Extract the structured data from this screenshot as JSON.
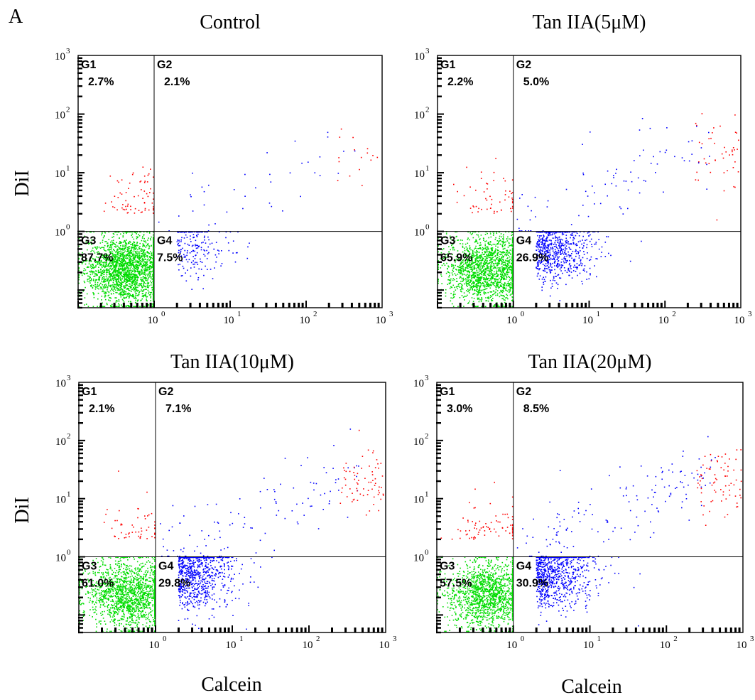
{
  "figure": {
    "panel_letter": "A",
    "y_axis_label": "DiI",
    "x_axis_label": "Calcein"
  },
  "chart_data": [
    {
      "type": "scatter",
      "title": "Control",
      "xlabel": "Calcein",
      "ylabel": "DiI",
      "xscale": "log",
      "yscale": "log",
      "xlim": [
        0.1,
        1000
      ],
      "ylim": [
        0.05,
        1000
      ],
      "x_ticks": [
        {
          "base": "10",
          "exp": "0"
        },
        {
          "base": "10",
          "exp": "1"
        },
        {
          "base": "10",
          "exp": "2"
        },
        {
          "base": "10",
          "exp": "3"
        }
      ],
      "y_ticks": [
        {
          "base": "10",
          "exp": "0"
        },
        {
          "base": "10",
          "exp": "1"
        },
        {
          "base": "10",
          "exp": "2"
        },
        {
          "base": "10",
          "exp": "3"
        }
      ],
      "gate_x": 1,
      "gate_y": 1,
      "quadrants": [
        {
          "name": "G1",
          "percent": "2.7%",
          "color": "#ff0000"
        },
        {
          "name": "G2",
          "percent": "2.1%",
          "color": "#0000ff"
        },
        {
          "name": "G3",
          "percent": "87.7%",
          "color": "#00dd00"
        },
        {
          "name": "G4",
          "percent": "7.5%",
          "color": "#0000ff"
        }
      ]
    },
    {
      "type": "scatter",
      "title": "Tan IIA(5μM)",
      "xlabel": "",
      "ylabel": "",
      "xscale": "log",
      "yscale": "log",
      "xlim": [
        0.1,
        1000
      ],
      "ylim": [
        0.05,
        1000
      ],
      "x_ticks": [
        {
          "base": "10",
          "exp": "0"
        },
        {
          "base": "10",
          "exp": "1"
        },
        {
          "base": "10",
          "exp": "2"
        },
        {
          "base": "10",
          "exp": "3"
        }
      ],
      "y_ticks": [
        {
          "base": "10",
          "exp": "0"
        },
        {
          "base": "10",
          "exp": "1"
        },
        {
          "base": "10",
          "exp": "2"
        },
        {
          "base": "10",
          "exp": "3"
        }
      ],
      "gate_x": 1,
      "gate_y": 1,
      "quadrants": [
        {
          "name": "G1",
          "percent": "2.2%",
          "color": "#ff0000"
        },
        {
          "name": "G2",
          "percent": "5.0%",
          "color": "#0000ff"
        },
        {
          "name": "G3",
          "percent": "65.9%",
          "color": "#00dd00"
        },
        {
          "name": "G4",
          "percent": "26.9%",
          "color": "#0000ff"
        }
      ]
    },
    {
      "type": "scatter",
      "title": "Tan IIA(10μM)",
      "xlabel": "",
      "ylabel": "DiI",
      "xscale": "log",
      "yscale": "log",
      "xlim": [
        0.1,
        1000
      ],
      "ylim": [
        0.05,
        1000
      ],
      "x_ticks": [
        {
          "base": "10",
          "exp": "0"
        },
        {
          "base": "10",
          "exp": "1"
        },
        {
          "base": "10",
          "exp": "2"
        },
        {
          "base": "10",
          "exp": "3"
        }
      ],
      "y_ticks": [
        {
          "base": "10",
          "exp": "0"
        },
        {
          "base": "10",
          "exp": "1"
        },
        {
          "base": "10",
          "exp": "2"
        },
        {
          "base": "10",
          "exp": "3"
        }
      ],
      "gate_x": 1,
      "gate_y": 1,
      "quadrants": [
        {
          "name": "G1",
          "percent": "2.1%",
          "color": "#ff0000"
        },
        {
          "name": "G2",
          "percent": "7.1%",
          "color": "#0000ff"
        },
        {
          "name": "G3",
          "percent": "61.0%",
          "color": "#00dd00"
        },
        {
          "name": "G4",
          "percent": "29.8%",
          "color": "#0000ff"
        }
      ]
    },
    {
      "type": "scatter",
      "title": "Tan IIA(20μM)",
      "xlabel": "Calcein",
      "ylabel": "",
      "xscale": "log",
      "yscale": "log",
      "xlim": [
        0.1,
        1000
      ],
      "ylim": [
        0.05,
        1000
      ],
      "x_ticks": [
        {
          "base": "10",
          "exp": "0"
        },
        {
          "base": "10",
          "exp": "1"
        },
        {
          "base": "10",
          "exp": "2"
        },
        {
          "base": "10",
          "exp": "3"
        }
      ],
      "y_ticks": [
        {
          "base": "10",
          "exp": "0"
        },
        {
          "base": "10",
          "exp": "1"
        },
        {
          "base": "10",
          "exp": "2"
        },
        {
          "base": "10",
          "exp": "3"
        }
      ],
      "gate_x": 1,
      "gate_y": 1,
      "quadrants": [
        {
          "name": "G1",
          "percent": "3.0%",
          "color": "#ff0000"
        },
        {
          "name": "G2",
          "percent": "8.5%",
          "color": "#0000ff"
        },
        {
          "name": "G3",
          "percent": "57.5%",
          "color": "#00dd00"
        },
        {
          "name": "G4",
          "percent": "30.9%",
          "color": "#0000ff"
        }
      ]
    }
  ]
}
